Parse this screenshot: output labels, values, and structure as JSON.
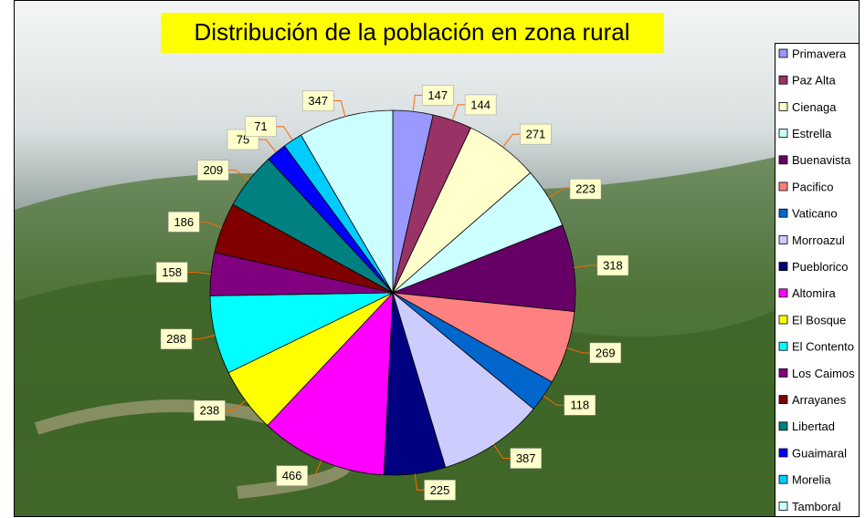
{
  "chart_data": {
    "type": "pie",
    "title": "Distribución de la población en zona rural",
    "categories": [
      "Primavera",
      "Paz Alta",
      "Cienaga",
      "Estrella",
      "Buenavista",
      "Pacifico",
      "Vaticano",
      "Morroazul",
      "Pueblorico",
      "Altomira",
      "El Bosque",
      "El Contento",
      "Los Caimos",
      "Arrayanes",
      "Libertad",
      "Guaimaral",
      "Morelia",
      "Tamboral"
    ],
    "values": [
      147,
      144,
      271,
      223,
      318,
      269,
      118,
      387,
      225,
      466,
      238,
      288,
      158,
      186,
      209,
      75,
      71,
      347
    ],
    "colors": [
      "#9999FF",
      "#993366",
      "#FFFFCC",
      "#CCFFFF",
      "#660066",
      "#FF8080",
      "#0066CC",
      "#CCCCFF",
      "#000080",
      "#FF00FF",
      "#FFFF00",
      "#00FFFF",
      "#800080",
      "#800000",
      "#008080",
      "#0000FF",
      "#00CCFF",
      "#CCFFFF"
    ],
    "legend": "right"
  }
}
